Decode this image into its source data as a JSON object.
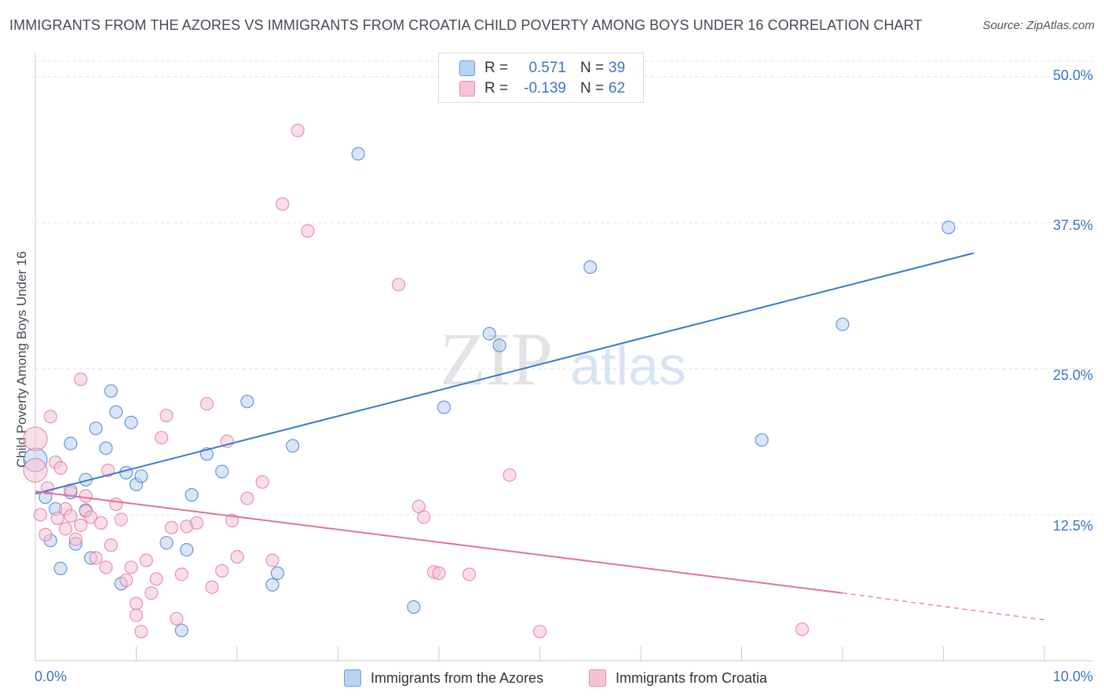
{
  "chart_data": {
    "type": "scatter",
    "title": "IMMIGRANTS FROM THE AZORES VS IMMIGRANTS FROM CROATIA CHILD POVERTY AMONG BOYS UNDER 16 CORRELATION CHART",
    "source": "Source: ZipAtlas.com",
    "ylabel": "Child Poverty Among Boys Under 16",
    "xlabel": "",
    "xlim": [
      0,
      10
    ],
    "ylim": [
      0,
      52
    ],
    "x_tick_labels": {
      "min": "0.0%",
      "max": "10.0%"
    },
    "y_ticks": [
      {
        "value": 12.5,
        "label": "12.5%"
      },
      {
        "value": 25.0,
        "label": "25.0%"
      },
      {
        "value": 37.5,
        "label": "37.5%"
      },
      {
        "value": 50.0,
        "label": "50.0%"
      }
    ],
    "watermark": {
      "zip": "ZIP",
      "atlas": "atlas"
    },
    "legend": {
      "r_label": "R =",
      "n_label": "N =",
      "entries": [
        {
          "r": "0.571",
          "n": "39"
        },
        {
          "r": "-0.139",
          "n": "62"
        }
      ]
    },
    "series": [
      {
        "name": "Immigrants from the Azores",
        "color": "#3a78cf",
        "fill": "#b9d2f2",
        "trend": {
          "x1": 0.0,
          "y1": 14.3,
          "x2": 9.3,
          "y2": 34.9
        },
        "points": [
          [
            0.0,
            17.2
          ],
          [
            0.1,
            14.0
          ],
          [
            0.15,
            10.3
          ],
          [
            0.2,
            13.0
          ],
          [
            0.25,
            7.9
          ],
          [
            0.35,
            18.6
          ],
          [
            0.35,
            14.4
          ],
          [
            0.4,
            10.0
          ],
          [
            0.5,
            15.5
          ],
          [
            0.5,
            12.9
          ],
          [
            0.55,
            8.8
          ],
          [
            0.6,
            19.9
          ],
          [
            0.7,
            18.2
          ],
          [
            0.75,
            23.1
          ],
          [
            0.8,
            21.3
          ],
          [
            0.85,
            6.6
          ],
          [
            0.9,
            16.1
          ],
          [
            0.95,
            20.4
          ],
          [
            1.0,
            15.1
          ],
          [
            1.05,
            15.8
          ],
          [
            1.3,
            10.1
          ],
          [
            1.45,
            2.6
          ],
          [
            1.5,
            9.5
          ],
          [
            1.55,
            14.2
          ],
          [
            1.7,
            17.7
          ],
          [
            1.85,
            16.2
          ],
          [
            2.1,
            22.2
          ],
          [
            2.35,
            6.5
          ],
          [
            2.4,
            7.5
          ],
          [
            2.55,
            18.4
          ],
          [
            3.2,
            43.4
          ],
          [
            3.75,
            4.6
          ],
          [
            4.05,
            21.7
          ],
          [
            4.5,
            28.0
          ],
          [
            4.6,
            27.0
          ],
          [
            5.5,
            33.7
          ],
          [
            7.2,
            18.9
          ],
          [
            8.0,
            28.8
          ],
          [
            9.05,
            37.1
          ]
        ]
      },
      {
        "name": "Immigrants from Croatia",
        "color": "#e0709a",
        "fill": "#f6c3d3",
        "trend": {
          "x1": 0.0,
          "y1": 14.5,
          "x2": 8.0,
          "y2": 5.8
        },
        "trend_dashed": {
          "x1": 8.0,
          "y1": 5.8,
          "x2": 10.0,
          "y2": 3.5
        },
        "points": [
          [
            0.0,
            19.0
          ],
          [
            0.0,
            16.3
          ],
          [
            0.05,
            12.5
          ],
          [
            0.1,
            10.8
          ],
          [
            0.12,
            14.8
          ],
          [
            0.15,
            20.9
          ],
          [
            0.2,
            17.0
          ],
          [
            0.22,
            12.2
          ],
          [
            0.25,
            16.5
          ],
          [
            0.3,
            13.0
          ],
          [
            0.3,
            11.3
          ],
          [
            0.35,
            12.4
          ],
          [
            0.35,
            14.6
          ],
          [
            0.4,
            10.4
          ],
          [
            0.45,
            11.6
          ],
          [
            0.45,
            24.1
          ],
          [
            0.5,
            14.1
          ],
          [
            0.5,
            12.8
          ],
          [
            0.55,
            12.3
          ],
          [
            0.6,
            8.8
          ],
          [
            0.65,
            11.8
          ],
          [
            0.7,
            8.0
          ],
          [
            0.72,
            16.3
          ],
          [
            0.75,
            9.9
          ],
          [
            0.8,
            13.4
          ],
          [
            0.85,
            12.1
          ],
          [
            0.9,
            6.9
          ],
          [
            0.95,
            8.0
          ],
          [
            1.0,
            4.9
          ],
          [
            1.0,
            3.9
          ],
          [
            1.05,
            2.5
          ],
          [
            1.1,
            8.6
          ],
          [
            1.15,
            5.8
          ],
          [
            1.2,
            7.0
          ],
          [
            1.25,
            19.1
          ],
          [
            1.3,
            21.0
          ],
          [
            1.35,
            11.4
          ],
          [
            1.4,
            3.6
          ],
          [
            1.45,
            7.4
          ],
          [
            1.5,
            11.5
          ],
          [
            1.6,
            11.8
          ],
          [
            1.7,
            22.0
          ],
          [
            1.75,
            6.3
          ],
          [
            1.85,
            7.7
          ],
          [
            1.9,
            18.8
          ],
          [
            1.95,
            12.0
          ],
          [
            2.0,
            8.9
          ],
          [
            2.1,
            13.9
          ],
          [
            2.25,
            15.3
          ],
          [
            2.35,
            8.6
          ],
          [
            2.45,
            39.1
          ],
          [
            2.6,
            45.4
          ],
          [
            2.7,
            36.8
          ],
          [
            3.6,
            32.2
          ],
          [
            3.8,
            13.2
          ],
          [
            3.85,
            12.3
          ],
          [
            3.95,
            7.6
          ],
          [
            4.0,
            7.5
          ],
          [
            4.3,
            7.4
          ],
          [
            4.7,
            15.9
          ],
          [
            5.0,
            2.5
          ],
          [
            7.6,
            2.7
          ]
        ]
      }
    ]
  }
}
